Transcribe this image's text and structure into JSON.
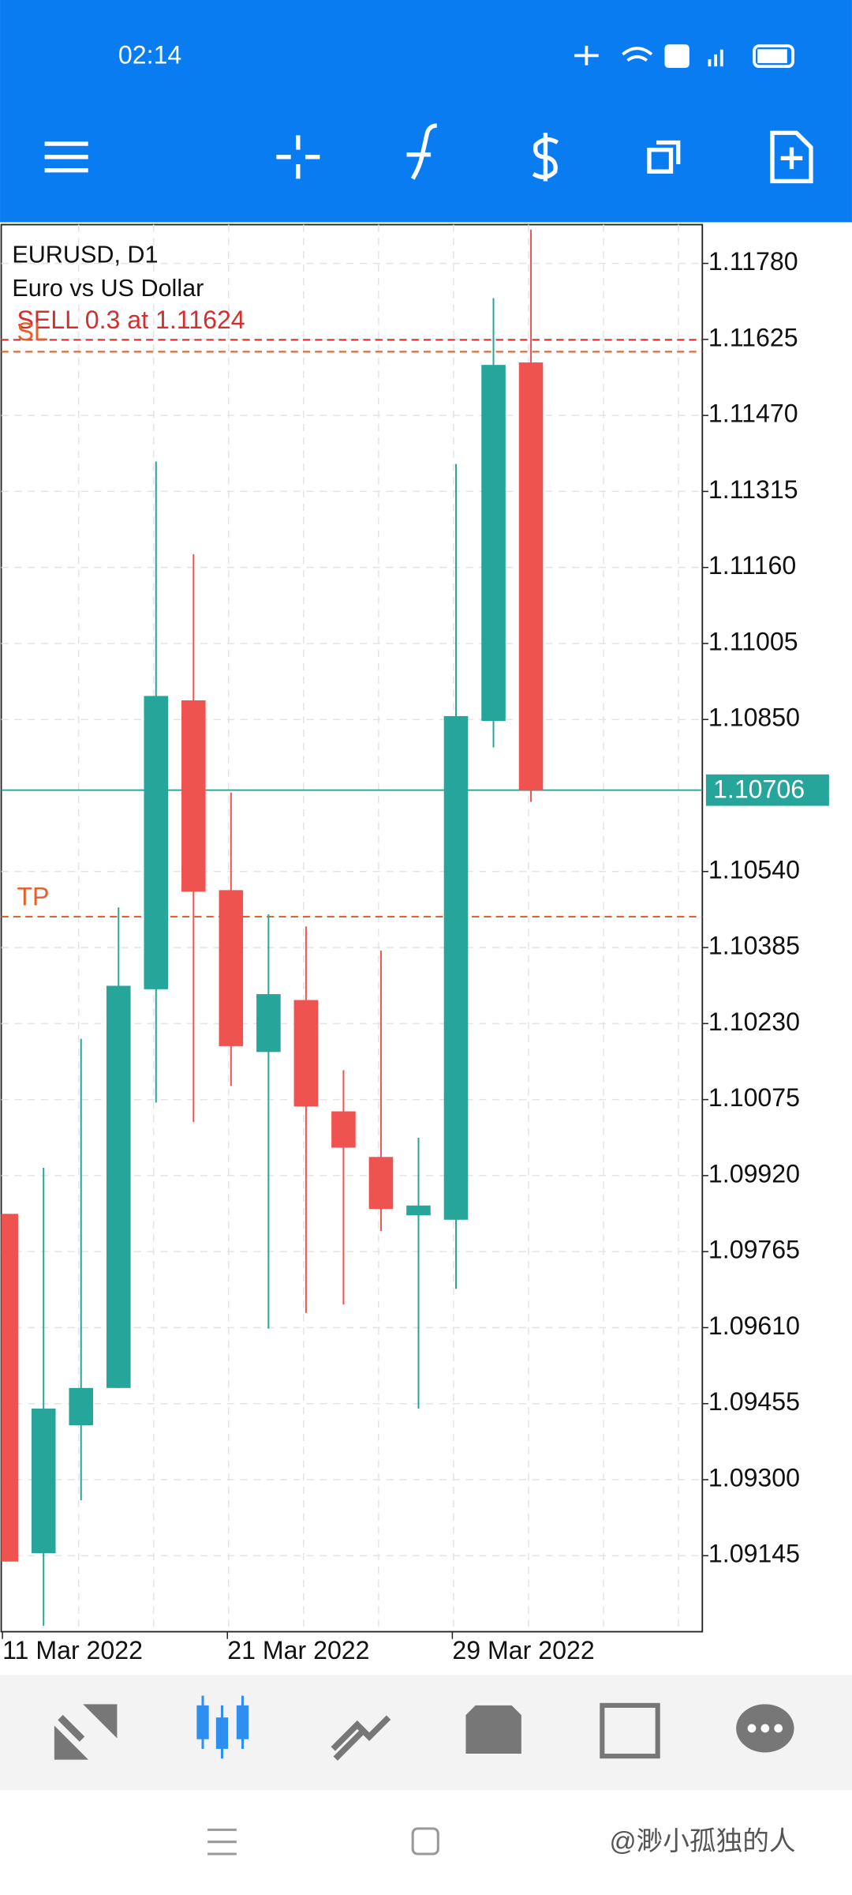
{
  "status_bar": {
    "time": "02:14"
  },
  "chart_data": {
    "type": "candlestick",
    "symbol": "EURUSD, D1",
    "description": "Euro vs US Dollar",
    "categories": [
      "11 Mar 2022",
      null,
      null,
      null,
      null,
      null,
      "21 Mar 2022",
      null,
      null,
      null,
      null,
      null,
      "29 Mar 2022",
      null,
      null
    ],
    "open": [
      1.09842,
      1.0915,
      1.09411,
      1.09487,
      1.103,
      1.10889,
      1.10502,
      1.10172,
      1.10278,
      1.10051,
      1.09958,
      1.09839,
      1.0983,
      1.10847,
      1.11578
    ],
    "high": [
      1.09842,
      1.09936,
      1.10199,
      1.10467,
      1.11376,
      1.11187,
      1.10701,
      1.10453,
      1.10428,
      1.10135,
      1.10379,
      1.09997,
      1.11371,
      1.11709,
      1.11849
    ],
    "low": [
      1.09133,
      1.09002,
      1.09258,
      1.09487,
      1.10069,
      1.10029,
      1.10103,
      1.09608,
      1.0964,
      1.09657,
      1.09807,
      1.09445,
      1.09689,
      1.10793,
      1.10682
    ],
    "close": [
      1.09133,
      1.09445,
      1.09487,
      1.10307,
      1.10898,
      1.10499,
      1.10184,
      1.1029,
      1.10061,
      1.09977,
      1.09852,
      1.09859,
      1.10857,
      1.11573,
      1.10706
    ],
    "up_color": "#26a69a",
    "down_color": "#ef5350",
    "ylim": [
      1.0899,
      1.11859
    ],
    "yticks": [
      {
        "value": 1.1178,
        "label": "1.11780"
      },
      1.11625,
      {
        "value": 1.1147,
        "label": "1.11470"
      },
      1.11315,
      {
        "value": 1.1116,
        "label": "1.11160"
      },
      1.11005,
      {
        "value": 1.1085,
        "label": "1.10850"
      },
      {
        "value": 1.1054,
        "label": "1.10540"
      },
      1.10385,
      {
        "value": 1.1023,
        "label": "1.10230"
      },
      1.10075,
      {
        "value": 1.0992,
        "label": "1.09920"
      },
      1.09765,
      {
        "value": 1.0961,
        "label": "1.09610"
      },
      1.09455,
      {
        "value": 1.093,
        "label": "1.09300"
      },
      1.09145
    ],
    "grid": true,
    "levels": [
      {
        "label": "SELL 0.3 at 1.11624",
        "value": 1.11624,
        "color": "#d32f2f"
      },
      {
        "label": "SL",
        "value": 1.116,
        "color": "#e0622c"
      },
      {
        "label": "TP",
        "value": 1.10448,
        "color": "#e0622c"
      }
    ],
    "current_price": {
      "value": 1.10706,
      "color": "#26a69a"
    }
  },
  "watermark": "@渺小孤独的人"
}
